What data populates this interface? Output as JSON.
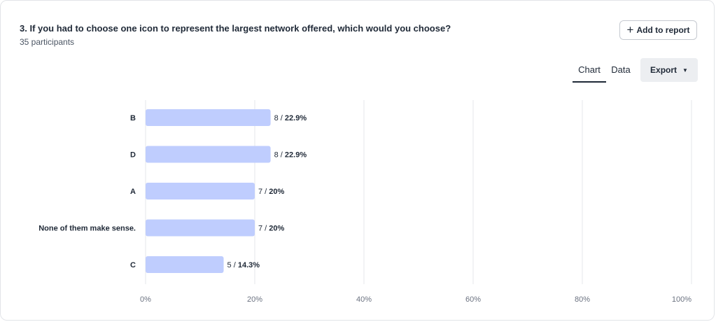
{
  "question": {
    "title": "3. If you had to choose one icon to represent the largest network offered, which would you choose?",
    "participants": "35 participants"
  },
  "actions": {
    "add_to_report": "Add to report",
    "export": "Export"
  },
  "tabs": [
    {
      "label": "Chart",
      "active": true
    },
    {
      "label": "Data",
      "active": false
    }
  ],
  "icons": {
    "add": "plus-icon",
    "export_menu": "caret-down-icon"
  },
  "colors": {
    "bar": "#bfcdfe",
    "grid": "#e5e7eb",
    "text": "#1f2937",
    "tick": "#6b7280"
  },
  "chart_data": {
    "type": "bar",
    "orientation": "horizontal",
    "categories": [
      "B",
      "D",
      "A",
      "None of them make sense.",
      "C"
    ],
    "counts": [
      8,
      8,
      7,
      7,
      5
    ],
    "values": [
      22.9,
      22.9,
      20,
      20,
      14.3
    ],
    "data_labels": [
      {
        "count": "8 / ",
        "pct": "22.9%"
      },
      {
        "count": "8 / ",
        "pct": "22.9%"
      },
      {
        "count": "7 / ",
        "pct": "20%"
      },
      {
        "count": "7 / ",
        "pct": "20%"
      },
      {
        "count": "5 / ",
        "pct": "14.3%"
      }
    ],
    "xlim": [
      0,
      100
    ],
    "x_ticks": [
      0,
      20,
      40,
      60,
      80,
      100
    ],
    "x_tick_labels": [
      "0%",
      "20%",
      "40%",
      "60%",
      "80%",
      "100%"
    ],
    "grid": true,
    "legend": "none"
  }
}
